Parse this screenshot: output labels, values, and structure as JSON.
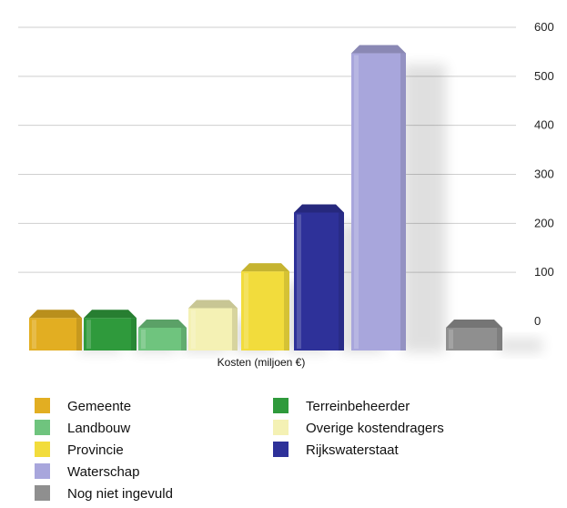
{
  "chart_data": {
    "type": "bar",
    "xlabel": "Kosten (miljoen €)",
    "ylabel": "",
    "ylim": [
      0,
      600
    ],
    "yticks": [
      0,
      100,
      200,
      300,
      400,
      500,
      600
    ],
    "grid": true,
    "legend_placement": "bottom",
    "series": [
      {
        "name": "Gemeente",
        "value": 20,
        "color": "#e2ae22"
      },
      {
        "name": "Terreinbeheerder",
        "value": 20,
        "color": "#2f9a3c"
      },
      {
        "name": "Landbouw",
        "value": 0,
        "color": "#6fc47e"
      },
      {
        "name": "Overige kostendragers",
        "value": 40,
        "color": "#f4f1b4"
      },
      {
        "name": "Provincie",
        "value": 115,
        "color": "#f2dc3c"
      },
      {
        "name": "Rijkswaterstaat",
        "value": 235,
        "color": "#2e3199"
      },
      {
        "name": "Waterschap",
        "value": 560,
        "color": "#a8a6dc"
      },
      {
        "name": "Nog niet ingevuld",
        "value": 0,
        "color": "#8f8f8f"
      }
    ]
  }
}
